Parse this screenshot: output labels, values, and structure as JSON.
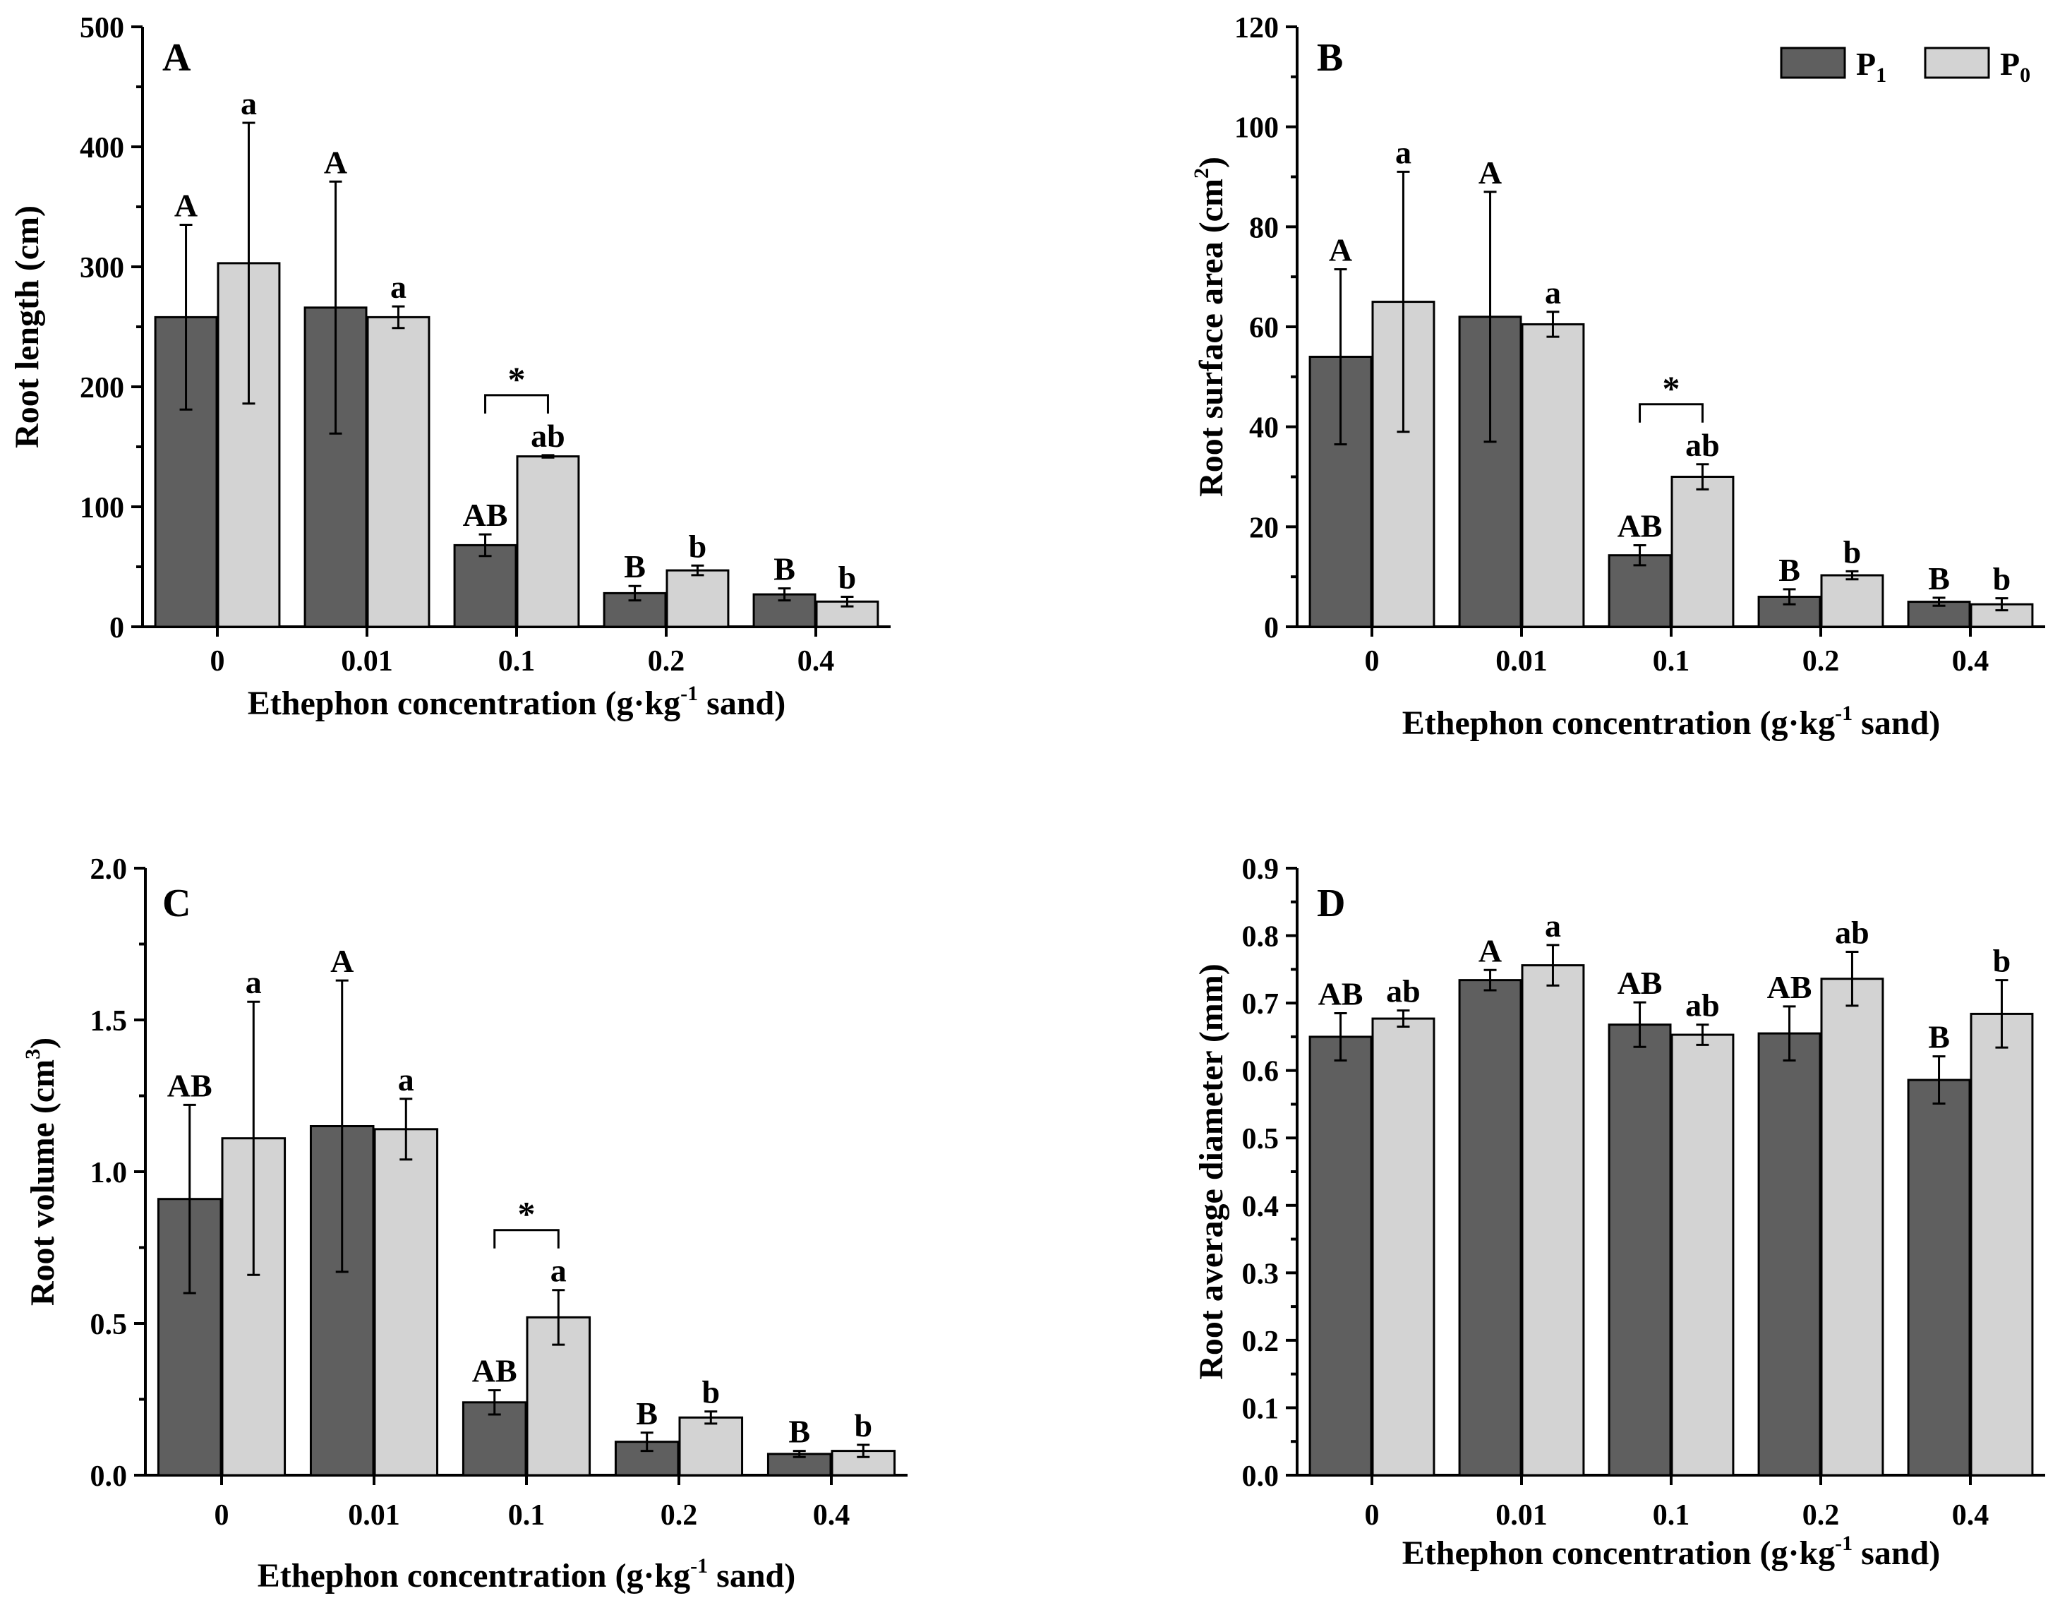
{
  "legend": {
    "items": [
      {
        "symbol": "P",
        "sub": "1",
        "color": "#5f5f5f"
      },
      {
        "symbol": "P",
        "sub": "0",
        "color": "#d3d3d3"
      }
    ]
  },
  "chart_data": [
    {
      "panel": "A",
      "type": "bar",
      "ylabel": "Root length (cm)",
      "xlabel_parts": {
        "main": "Ethephon concentration (g·kg",
        "sup": "-1",
        "tail": " sand)"
      },
      "categories": [
        "0",
        "0.01",
        "0.1",
        "0.2",
        "0.4"
      ],
      "ylim": [
        0,
        500
      ],
      "yticks": [
        "0",
        "100",
        "200",
        "300",
        "400",
        "500"
      ],
      "series": [
        {
          "legend_index": 0,
          "values": [
            258,
            266,
            68,
            28,
            27
          ],
          "errors": [
            77,
            105,
            9,
            6,
            5
          ],
          "letters": [
            "A",
            "A",
            "AB",
            "B",
            "B"
          ]
        },
        {
          "legend_index": 1,
          "values": [
            303,
            258,
            142,
            47,
            21
          ],
          "errors": [
            117,
            9,
            1,
            4,
            4
          ],
          "letters": [
            "a",
            "a",
            "ab",
            "b",
            "b"
          ]
        }
      ],
      "significance": {
        "category_index": 2,
        "label": "*"
      }
    },
    {
      "panel": "B",
      "type": "bar",
      "ylabel_parts": {
        "main": "Root surface area (cm",
        "sup": "2",
        "tail": ")"
      },
      "xlabel_parts": {
        "main": "Ethephon concentration (g·kg",
        "sup": "-1",
        "tail": " sand)"
      },
      "categories": [
        "0",
        "0.01",
        "0.1",
        "0.2",
        "0.4"
      ],
      "ylim": [
        0,
        120
      ],
      "yticks": [
        "0",
        "20",
        "40",
        "60",
        "80",
        "100",
        "120"
      ],
      "series": [
        {
          "legend_index": 0,
          "values": [
            54,
            62,
            14.3,
            6,
            5
          ],
          "errors": [
            17.5,
            25,
            2,
            1.5,
            0.8
          ],
          "letters": [
            "A",
            "A",
            "AB",
            "B",
            "B"
          ]
        },
        {
          "legend_index": 1,
          "values": [
            65,
            60.5,
            30,
            10.3,
            4.5
          ],
          "errors": [
            26,
            2.5,
            2.5,
            0.8,
            1.2
          ],
          "letters": [
            "a",
            "a",
            "ab",
            "b",
            "b"
          ]
        }
      ],
      "significance": {
        "category_index": 2,
        "label": "*"
      }
    },
    {
      "panel": "C",
      "type": "bar",
      "ylabel_parts": {
        "main": "Root volume (cm",
        "sup": "3",
        "tail": ")"
      },
      "xlabel_parts": {
        "main": "Ethephon concentration (g·kg",
        "sup": "-1",
        "tail": " sand)"
      },
      "categories": [
        "0",
        "0.01",
        "0.1",
        "0.2",
        "0.4"
      ],
      "ylim": [
        0,
        2.0
      ],
      "yticks": [
        "0.0",
        "0.5",
        "1.0",
        "1.5",
        "2.0"
      ],
      "series": [
        {
          "legend_index": 0,
          "values": [
            0.91,
            1.15,
            0.24,
            0.11,
            0.07
          ],
          "errors": [
            0.31,
            0.48,
            0.04,
            0.03,
            0.01
          ],
          "letters": [
            "AB",
            "A",
            "AB",
            "B",
            "B"
          ]
        },
        {
          "legend_index": 1,
          "values": [
            1.11,
            1.14,
            0.52,
            0.19,
            0.08
          ],
          "errors": [
            0.45,
            0.1,
            0.09,
            0.02,
            0.02
          ],
          "letters": [
            "a",
            "a",
            "a",
            "b",
            "b"
          ]
        }
      ],
      "significance": {
        "category_index": 2,
        "label": "*"
      }
    },
    {
      "panel": "D",
      "type": "bar",
      "ylabel": "Root average diameter (mm)",
      "xlabel_parts": {
        "main": "Ethephon concentration (g·kg",
        "sup": "-1",
        "tail": " sand)"
      },
      "categories": [
        "0",
        "0.01",
        "0.1",
        "0.2",
        "0.4"
      ],
      "ylim": [
        0,
        0.9
      ],
      "yticks": [
        "0.0",
        "0.1",
        "0.2",
        "0.3",
        "0.4",
        "0.5",
        "0.6",
        "0.7",
        "0.8",
        "0.9"
      ],
      "series": [
        {
          "legend_index": 0,
          "values": [
            0.65,
            0.734,
            0.668,
            0.655,
            0.586
          ],
          "errors": [
            0.035,
            0.015,
            0.033,
            0.04,
            0.035
          ],
          "letters": [
            "AB",
            "A",
            "AB",
            "AB",
            "B"
          ]
        },
        {
          "legend_index": 1,
          "values": [
            0.677,
            0.756,
            0.653,
            0.736,
            0.684
          ],
          "errors": [
            0.012,
            0.03,
            0.015,
            0.04,
            0.05
          ],
          "letters": [
            "ab",
            "a",
            "ab",
            "ab",
            "b"
          ]
        }
      ]
    }
  ]
}
